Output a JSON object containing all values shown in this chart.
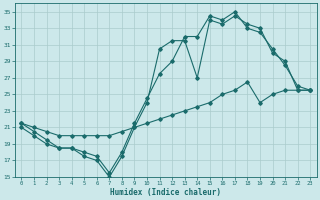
{
  "xlabel": "Humidex (Indice chaleur)",
  "bg_color": "#cce8ea",
  "grid_color": "#aacccc",
  "line_color": "#1a6b6b",
  "xlim": [
    -0.5,
    23.5
  ],
  "ylim": [
    15,
    36
  ],
  "yticks": [
    15,
    17,
    19,
    21,
    23,
    25,
    27,
    29,
    31,
    33,
    35
  ],
  "xticks": [
    0,
    1,
    2,
    3,
    4,
    5,
    6,
    7,
    8,
    9,
    10,
    11,
    12,
    13,
    14,
    15,
    16,
    17,
    18,
    19,
    20,
    21,
    22,
    23
  ],
  "curve1_x": [
    0,
    1,
    2,
    3,
    4,
    5,
    6,
    7,
    8,
    9,
    10,
    11,
    12,
    13,
    14,
    15,
    16,
    17,
    18,
    19,
    20,
    21,
    22,
    23
  ],
  "curve1_y": [
    21.0,
    20.0,
    19.0,
    18.5,
    18.5,
    17.5,
    17.0,
    15.0,
    17.5,
    21.0,
    24.0,
    30.5,
    31.5,
    31.5,
    27.0,
    34.0,
    33.5,
    34.5,
    33.5,
    33.0,
    30.0,
    29.0,
    25.5,
    25.5
  ],
  "curve2_x": [
    0,
    1,
    2,
    3,
    4,
    5,
    6,
    7,
    8,
    9,
    10,
    11,
    12,
    13,
    14,
    15,
    16,
    17,
    18,
    19,
    20,
    21,
    22,
    23
  ],
  "curve2_y": [
    21.5,
    20.5,
    19.5,
    18.5,
    18.5,
    18.0,
    17.5,
    15.5,
    18.0,
    21.5,
    24.5,
    27.5,
    29.0,
    32.0,
    32.0,
    34.5,
    34.0,
    35.0,
    33.0,
    32.5,
    30.5,
    28.5,
    26.0,
    25.5
  ],
  "curve3_x": [
    0,
    1,
    2,
    3,
    4,
    5,
    6,
    7,
    8,
    9,
    10,
    11,
    12,
    13,
    14,
    15,
    16,
    17,
    18,
    19,
    20,
    21,
    22,
    23
  ],
  "curve3_y": [
    21.5,
    21.0,
    20.5,
    20.0,
    20.0,
    20.0,
    20.0,
    20.0,
    20.5,
    21.0,
    21.5,
    22.0,
    22.5,
    23.0,
    23.5,
    24.0,
    25.0,
    25.5,
    26.5,
    24.0,
    25.0,
    25.5,
    25.5,
    25.5
  ]
}
